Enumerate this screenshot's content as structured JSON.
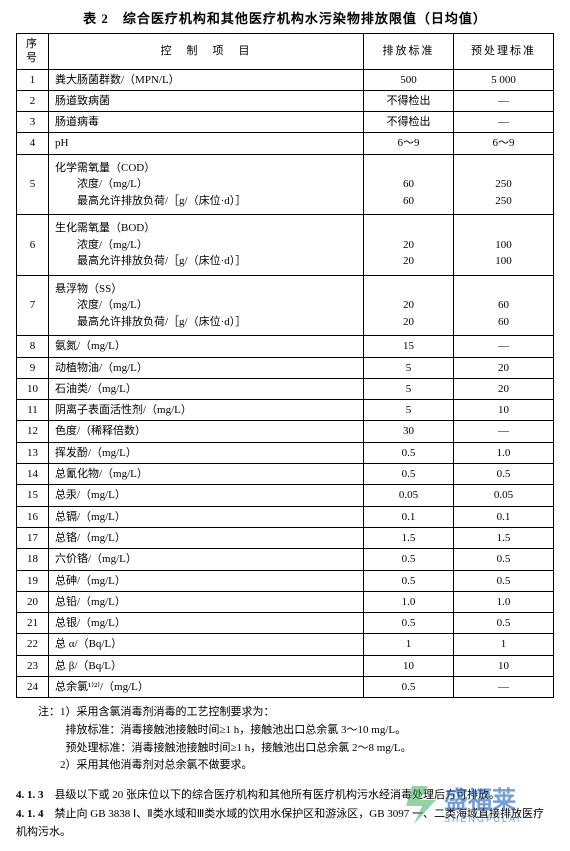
{
  "title": "表 2　综合医疗机构和其他医疗机构水污染物排放限值（日均值）",
  "headers": {
    "num": "序号",
    "item": "控　制　项　目",
    "std1": "排放标准",
    "std2": "预处理标准"
  },
  "rows": [
    {
      "n": "1",
      "item": "粪大肠菌群数/（MPN/L）",
      "s1": "500",
      "s2": "5 000"
    },
    {
      "n": "2",
      "item": "肠道致病菌",
      "s1": "不得检出",
      "s2": "—"
    },
    {
      "n": "3",
      "item": "肠道病毒",
      "s1": "不得检出",
      "s2": "—"
    },
    {
      "n": "4",
      "item": "pH",
      "s1": "6～9",
      "s2": "6～9"
    },
    {
      "n": "5",
      "multi": true,
      "lines": [
        "化学需氧量（COD）",
        "　　浓度/（mg/L）",
        "　　最高允许排放负荷/［g/（床位·d）］"
      ],
      "s1": [
        "",
        "60",
        "60"
      ],
      "s2": [
        "",
        "250",
        "250"
      ]
    },
    {
      "n": "6",
      "multi": true,
      "lines": [
        "生化需氧量（BOD）",
        "　　浓度/（mg/L）",
        "　　最高允许排放负荷/［g/（床位·d）］"
      ],
      "s1": [
        "",
        "20",
        "20"
      ],
      "s2": [
        "",
        "100",
        "100"
      ]
    },
    {
      "n": "7",
      "multi": true,
      "lines": [
        "悬浮物（SS）",
        "　　浓度/（mg/L）",
        "　　最高允许排放负荷/［g/（床位·d）］"
      ],
      "s1": [
        "",
        "20",
        "20"
      ],
      "s2": [
        "",
        "60",
        "60"
      ]
    },
    {
      "n": "8",
      "item": "氨氮/（mg/L）",
      "s1": "15",
      "s2": "—"
    },
    {
      "n": "9",
      "item": "动植物油/（mg/L）",
      "s1": "5",
      "s2": "20"
    },
    {
      "n": "10",
      "item": "石油类/（mg/L）",
      "s1": "5",
      "s2": "20"
    },
    {
      "n": "11",
      "item": "阴离子表面活性剂/（mg/L）",
      "s1": "5",
      "s2": "10"
    },
    {
      "n": "12",
      "item": "色度/（稀释倍数）",
      "s1": "30",
      "s2": "—"
    },
    {
      "n": "13",
      "item": "挥发酚/（mg/L）",
      "s1": "0.5",
      "s2": "1.0"
    },
    {
      "n": "14",
      "item": "总氰化物/（mg/L）",
      "s1": "0.5",
      "s2": "0.5"
    },
    {
      "n": "15",
      "item": "总汞/（mg/L）",
      "s1": "0.05",
      "s2": "0.05"
    },
    {
      "n": "16",
      "item": "总镉/（mg/L）",
      "s1": "0.1",
      "s2": "0.1"
    },
    {
      "n": "17",
      "item": "总铬/（mg/L）",
      "s1": "1.5",
      "s2": "1.5"
    },
    {
      "n": "18",
      "item": "六价铬/（mg/L）",
      "s1": "0.5",
      "s2": "0.5"
    },
    {
      "n": "19",
      "item": "总砷/（mg/L）",
      "s1": "0.5",
      "s2": "0.5"
    },
    {
      "n": "20",
      "item": "总铅/（mg/L）",
      "s1": "1.0",
      "s2": "1.0"
    },
    {
      "n": "21",
      "item": "总银/（mg/L）",
      "s1": "0.5",
      "s2": "0.5"
    },
    {
      "n": "22",
      "item": "总 α/（Bq/L）",
      "s1": "1",
      "s2": "1"
    },
    {
      "n": "23",
      "item": "总 β/（Bq/L）",
      "s1": "10",
      "s2": "10"
    },
    {
      "n": "24",
      "item": "总余氯¹⁾²⁾/（mg/L）",
      "s1": "0.5",
      "s2": "—"
    }
  ],
  "notes": {
    "prefix": "注：",
    "l1": "1）采用含氯消毒剂消毒的工艺控制要求为：",
    "l1a": "排放标准：消毒接触池接触时间≥1 h，接触池出口总余氯 3～10 mg/L。",
    "l1b": "预处理标准：消毒接触池接触时间≥1 h，接触池出口总余氯 2～8 mg/L。",
    "l2": "2）采用其他消毒剂对总余氯不做要求。"
  },
  "paragraphs": {
    "p1_label": "4. 1. 3",
    "p1_text": "县级以下或 20 张床位以下的综合医疗机构和其他所有医疗机构污水经消毒处理后方可排放。",
    "p2_label": "4. 1. 4",
    "p2_text": "禁止向 GB 3838 Ⅰ、Ⅱ类水域和Ⅲ类水域的饮用水保护区和游泳区，GB 3097 一、二类海域直接排放医疗机构污水。"
  },
  "watermark": {
    "text": "盛福莱",
    "sub": "SHENGFULAI",
    "color1": "#1b5fb8",
    "color2": "#2fa84f"
  }
}
